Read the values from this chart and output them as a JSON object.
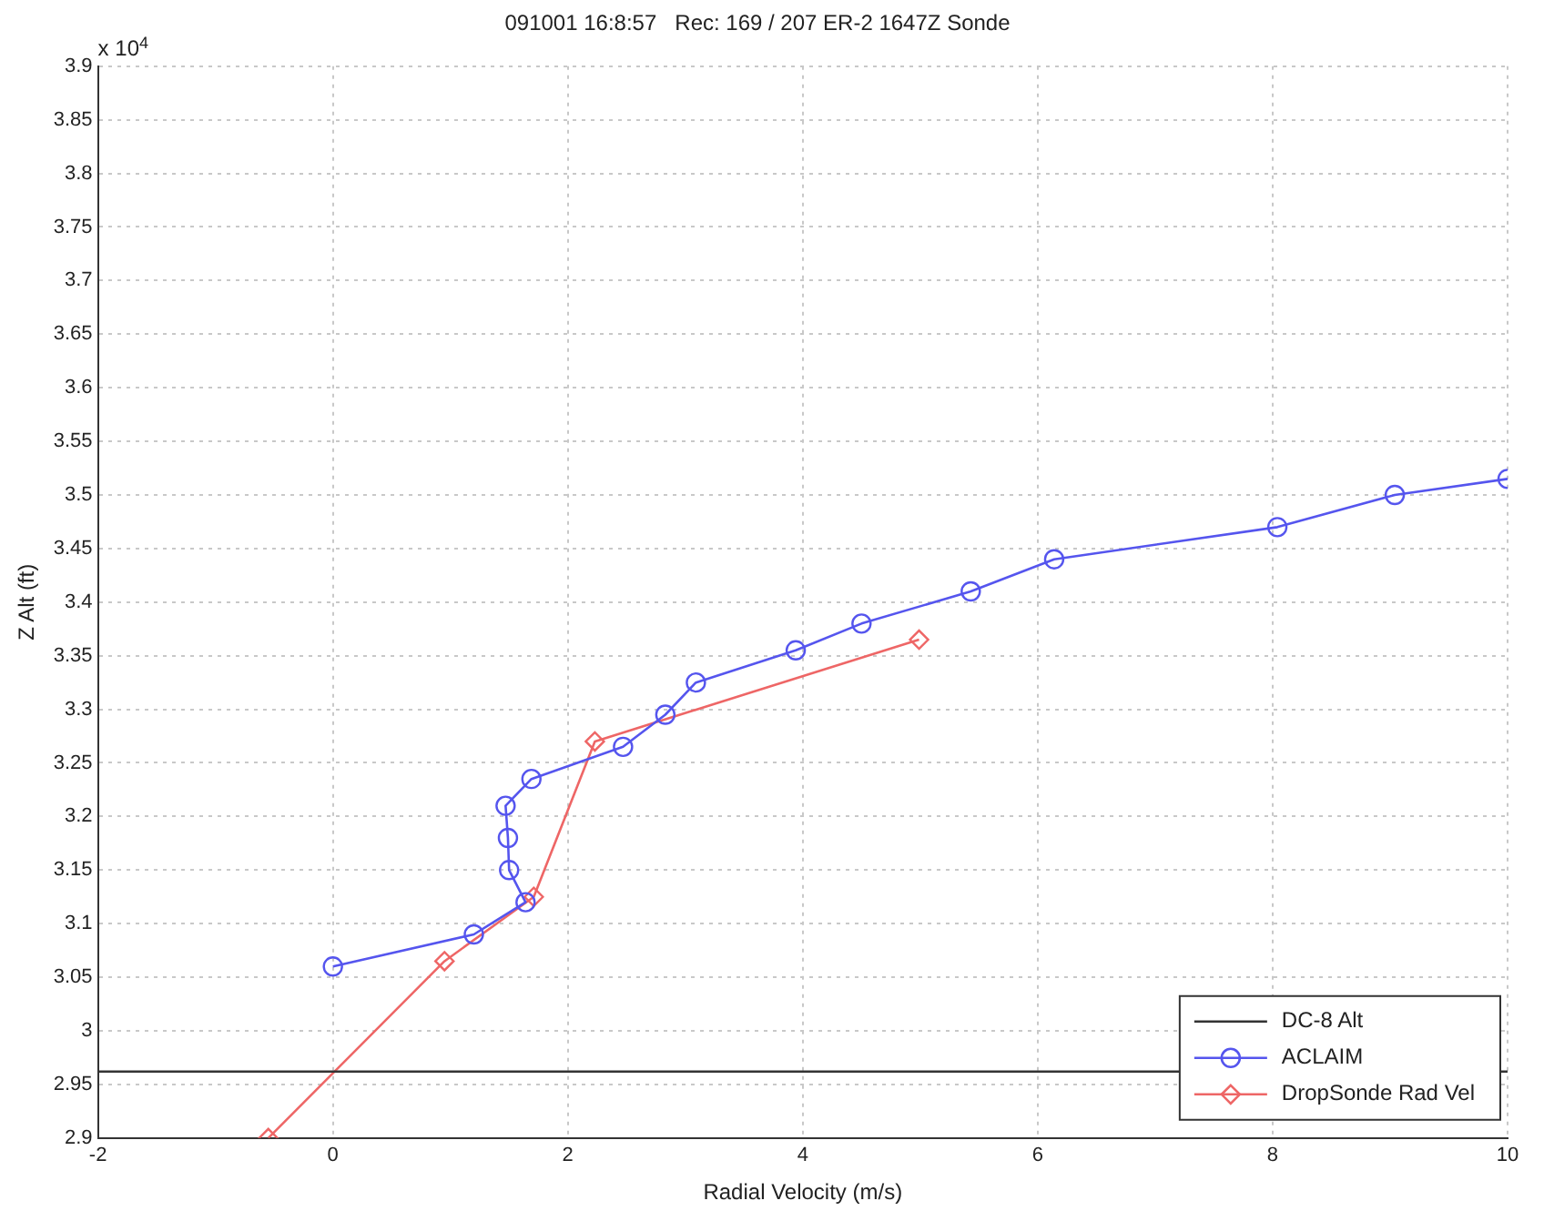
{
  "chart_data": {
    "type": "line",
    "title": "091001 16:8:57   Rec: 169 / 207 ER-2 1647Z Sonde",
    "xlabel": "Radial Velocity (m/s)",
    "ylabel": "Z Alt (ft)",
    "annotations": [
      "x 10$^{4}$"
    ],
    "xlim": [
      -2,
      10
    ],
    "xticks": [
      -2,
      0,
      2,
      4,
      6,
      8,
      10
    ],
    "ylim": [
      2.9,
      3.9
    ],
    "yticks": [
      2.9,
      2.95,
      3,
      3.05,
      3.1,
      3.15,
      3.2,
      3.25,
      3.3,
      3.35,
      3.4,
      3.45,
      3.5,
      3.55,
      3.6,
      3.65,
      3.7,
      3.75,
      3.8,
      3.85,
      3.9
    ],
    "grid": true,
    "legend": "bottom right",
    "line_style": "solid",
    "series": [
      {
        "name": "DC-8 Alt",
        "color": "#333333",
        "marker": "none",
        "x": [
          -2,
          10
        ],
        "values": [
          2.962,
          2.962
        ]
      },
      {
        "name": "ACLAIM",
        "color": "#5555ee",
        "marker": "circle",
        "x": [
          0,
          1.2,
          1.64,
          1.5,
          1.49,
          1.47,
          1.69,
          2.47,
          2.83,
          3.09,
          3.94,
          4.5,
          5.43,
          6.14,
          8.04,
          9.04,
          10
        ],
        "values": [
          3.06,
          3.09,
          3.12,
          3.15,
          3.18,
          3.21,
          3.235,
          3.265,
          3.295,
          3.325,
          3.355,
          3.38,
          3.41,
          3.44,
          3.47,
          3.5,
          3.515
        ]
      },
      {
        "name": "DropSonde Rad Vel",
        "color": "#ee6666",
        "marker": "diamond",
        "x": [
          -0.55,
          0.95,
          1.71,
          2.23,
          4.99
        ],
        "values": [
          2.9,
          3.065,
          3.125,
          3.27,
          3.365
        ]
      }
    ]
  }
}
